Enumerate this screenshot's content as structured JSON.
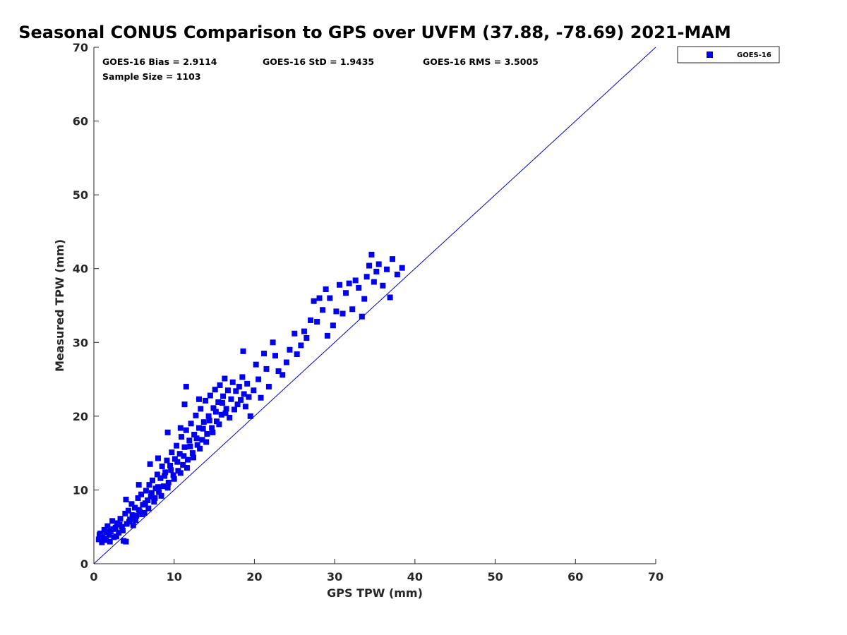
{
  "chart_data": {
    "type": "scatter",
    "title": "Seasonal CONUS Comparison to GPS over UVFM (37.88, -78.69) 2021-MAM",
    "xlabel": "GPS TPW (mm)",
    "ylabel": "Measured TPW (mm)",
    "xlim": [
      0,
      70
    ],
    "ylim": [
      0,
      70
    ],
    "xticks": [
      0,
      10,
      20,
      30,
      40,
      50,
      60,
      70
    ],
    "yticks": [
      0,
      10,
      20,
      30,
      40,
      50,
      60,
      70
    ],
    "grid": false,
    "legend_position": "top-right, outside plot",
    "reference_line": {
      "from": [
        0,
        0
      ],
      "to": [
        70,
        70
      ],
      "color": "#0000cc"
    },
    "stats": {
      "bias": "GOES-16 Bias = 2.9114",
      "std": "GOES-16 StD = 1.9435",
      "rms": "GOES-16 RMS = 3.5005",
      "sample_size": "Sample Size = 1103"
    },
    "series": [
      {
        "name": "GOES-16",
        "color": "#0000ee",
        "marker": "square",
        "points": [
          [
            0.6,
            3.3
          ],
          [
            0.8,
            4.1
          ],
          [
            1.0,
            2.9
          ],
          [
            1.1,
            3.8
          ],
          [
            1.3,
            4.6
          ],
          [
            1.5,
            3.2
          ],
          [
            1.7,
            5.1
          ],
          [
            1.9,
            3.9
          ],
          [
            2.1,
            4.4
          ],
          [
            2.3,
            5.8
          ],
          [
            2.5,
            3.6
          ],
          [
            2.7,
            4.9
          ],
          [
            2.9,
            5.5
          ],
          [
            3.1,
            4.2
          ],
          [
            3.3,
            6.1
          ],
          [
            3.5,
            5.0
          ],
          [
            3.7,
            3.1
          ],
          [
            3.9,
            6.8
          ],
          [
            4.1,
            5.4
          ],
          [
            4.3,
            7.2
          ],
          [
            4.5,
            6.0
          ],
          [
            4.7,
            8.1
          ],
          [
            4.9,
            5.2
          ],
          [
            5.1,
            7.6
          ],
          [
            5.3,
            6.5
          ],
          [
            5.5,
            8.9
          ],
          [
            5.7,
            7.1
          ],
          [
            5.9,
            9.4
          ],
          [
            6.1,
            8.0
          ],
          [
            6.3,
            6.9
          ],
          [
            6.5,
            9.9
          ],
          [
            6.7,
            8.6
          ],
          [
            6.9,
            10.7
          ],
          [
            7.1,
            9.1
          ],
          [
            7.3,
            11.3
          ],
          [
            7.5,
            8.4
          ],
          [
            7.7,
            10.2
          ],
          [
            7.9,
            12.1
          ],
          [
            8.1,
            9.7
          ],
          [
            8.3,
            11.6
          ],
          [
            8.5,
            13.2
          ],
          [
            8.7,
            10.5
          ],
          [
            8.9,
            12.4
          ],
          [
            9.1,
            14.0
          ],
          [
            9.3,
            11.0
          ],
          [
            9.5,
            13.3
          ],
          [
            9.7,
            15.1
          ],
          [
            9.9,
            12.0
          ],
          [
            10.1,
            14.2
          ],
          [
            10.3,
            16.0
          ],
          [
            10.5,
            12.6
          ],
          [
            10.7,
            14.9
          ],
          [
            10.9,
            17.2
          ],
          [
            11.1,
            13.4
          ],
          [
            11.3,
            15.8
          ],
          [
            11.5,
            18.1
          ],
          [
            11.7,
            14.1
          ],
          [
            11.9,
            16.7
          ],
          [
            12.1,
            19.0
          ],
          [
            12.3,
            15.0
          ],
          [
            12.5,
            17.5
          ],
          [
            12.7,
            20.1
          ],
          [
            12.9,
            16.1
          ],
          [
            13.1,
            18.4
          ],
          [
            13.3,
            21.0
          ],
          [
            13.5,
            16.8
          ],
          [
            13.7,
            19.2
          ],
          [
            13.9,
            22.1
          ],
          [
            14.1,
            17.6
          ],
          [
            14.3,
            20.0
          ],
          [
            14.5,
            22.8
          ],
          [
            14.7,
            18.4
          ],
          [
            14.9,
            21.1
          ],
          [
            15.1,
            23.6
          ],
          [
            15.3,
            19.3
          ],
          [
            15.5,
            21.9
          ],
          [
            15.7,
            24.2
          ],
          [
            15.9,
            20.2
          ],
          [
            16.1,
            22.7
          ],
          [
            16.3,
            25.1
          ],
          [
            16.5,
            21.0
          ],
          [
            16.7,
            23.5
          ],
          [
            16.9,
            19.8
          ],
          [
            17.1,
            22.3
          ],
          [
            17.3,
            24.6
          ],
          [
            17.5,
            20.9
          ],
          [
            17.7,
            23.4
          ],
          [
            17.9,
            21.6
          ],
          [
            18.1,
            24.0
          ],
          [
            18.3,
            22.2
          ],
          [
            18.5,
            25.3
          ],
          [
            18.7,
            23.0
          ],
          [
            18.9,
            21.3
          ],
          [
            19.1,
            24.4
          ],
          [
            19.3,
            22.6
          ],
          [
            19.5,
            20.0
          ],
          [
            19.9,
            23.5
          ],
          [
            20.2,
            27.0
          ],
          [
            20.5,
            25.0
          ],
          [
            20.8,
            22.5
          ],
          [
            21.2,
            28.5
          ],
          [
            21.5,
            26.4
          ],
          [
            21.8,
            24.0
          ],
          [
            22.3,
            30.0
          ],
          [
            22.6,
            28.2
          ],
          [
            23.0,
            26.1
          ],
          [
            23.5,
            25.6
          ],
          [
            24.0,
            27.3
          ],
          [
            24.4,
            29.0
          ],
          [
            25.0,
            31.2
          ],
          [
            25.3,
            28.4
          ],
          [
            25.8,
            29.6
          ],
          [
            26.2,
            31.5
          ],
          [
            26.5,
            30.6
          ],
          [
            27.0,
            33.0
          ],
          [
            27.4,
            35.6
          ],
          [
            27.8,
            32.8
          ],
          [
            28.1,
            36.0
          ],
          [
            28.5,
            34.4
          ],
          [
            28.9,
            37.2
          ],
          [
            29.1,
            30.9
          ],
          [
            29.4,
            36.0
          ],
          [
            29.8,
            32.3
          ],
          [
            30.2,
            34.2
          ],
          [
            30.6,
            37.8
          ],
          [
            31.0,
            33.9
          ],
          [
            31.4,
            36.7
          ],
          [
            31.8,
            38.0
          ],
          [
            32.2,
            34.5
          ],
          [
            32.6,
            38.4
          ],
          [
            33.0,
            37.4
          ],
          [
            33.4,
            33.5
          ],
          [
            33.7,
            35.9
          ],
          [
            34.0,
            38.9
          ],
          [
            34.3,
            40.4
          ],
          [
            34.6,
            41.9
          ],
          [
            34.9,
            38.2
          ],
          [
            35.2,
            39.6
          ],
          [
            35.5,
            40.6
          ],
          [
            36.0,
            37.7
          ],
          [
            36.5,
            39.9
          ],
          [
            36.9,
            36.1
          ],
          [
            37.2,
            41.3
          ],
          [
            37.8,
            39.2
          ],
          [
            38.4,
            40.1
          ],
          [
            0.7,
            3.9
          ],
          [
            1.2,
            3.4
          ],
          [
            1.6,
            4.3
          ],
          [
            2.0,
            3.0
          ],
          [
            2.4,
            4.7
          ],
          [
            2.8,
            3.7
          ],
          [
            3.2,
            5.3
          ],
          [
            3.6,
            4.5
          ],
          [
            4.0,
            3.0
          ],
          [
            4.4,
            5.7
          ],
          [
            4.8,
            6.6
          ],
          [
            5.2,
            5.9
          ],
          [
            5.6,
            7.3
          ],
          [
            6.0,
            6.7
          ],
          [
            6.4,
            8.2
          ],
          [
            6.8,
            7.5
          ],
          [
            7.2,
            9.6
          ],
          [
            7.6,
            8.9
          ],
          [
            8.0,
            10.4
          ],
          [
            8.4,
            9.2
          ],
          [
            8.8,
            11.9
          ],
          [
            9.2,
            10.3
          ],
          [
            9.6,
            12.7
          ],
          [
            10.0,
            11.5
          ],
          [
            10.4,
            13.8
          ],
          [
            10.8,
            12.3
          ],
          [
            11.2,
            14.6
          ],
          [
            11.6,
            13.0
          ],
          [
            12.0,
            15.9
          ],
          [
            12.4,
            14.4
          ],
          [
            12.8,
            17.0
          ],
          [
            13.2,
            15.6
          ],
          [
            13.6,
            18.3
          ],
          [
            14.0,
            16.5
          ],
          [
            14.4,
            19.4
          ],
          [
            14.8,
            17.8
          ],
          [
            15.2,
            20.6
          ],
          [
            15.6,
            18.9
          ],
          [
            16.0,
            21.8
          ],
          [
            16.4,
            20.4
          ],
          [
            4.0,
            8.7
          ],
          [
            5.6,
            10.7
          ],
          [
            7.0,
            13.5
          ],
          [
            8.0,
            14.3
          ],
          [
            9.2,
            17.8
          ],
          [
            10.8,
            18.4
          ],
          [
            11.3,
            21.6
          ],
          [
            11.5,
            24.0
          ],
          [
            13.1,
            22.3
          ],
          [
            18.6,
            28.8
          ]
        ]
      }
    ]
  }
}
